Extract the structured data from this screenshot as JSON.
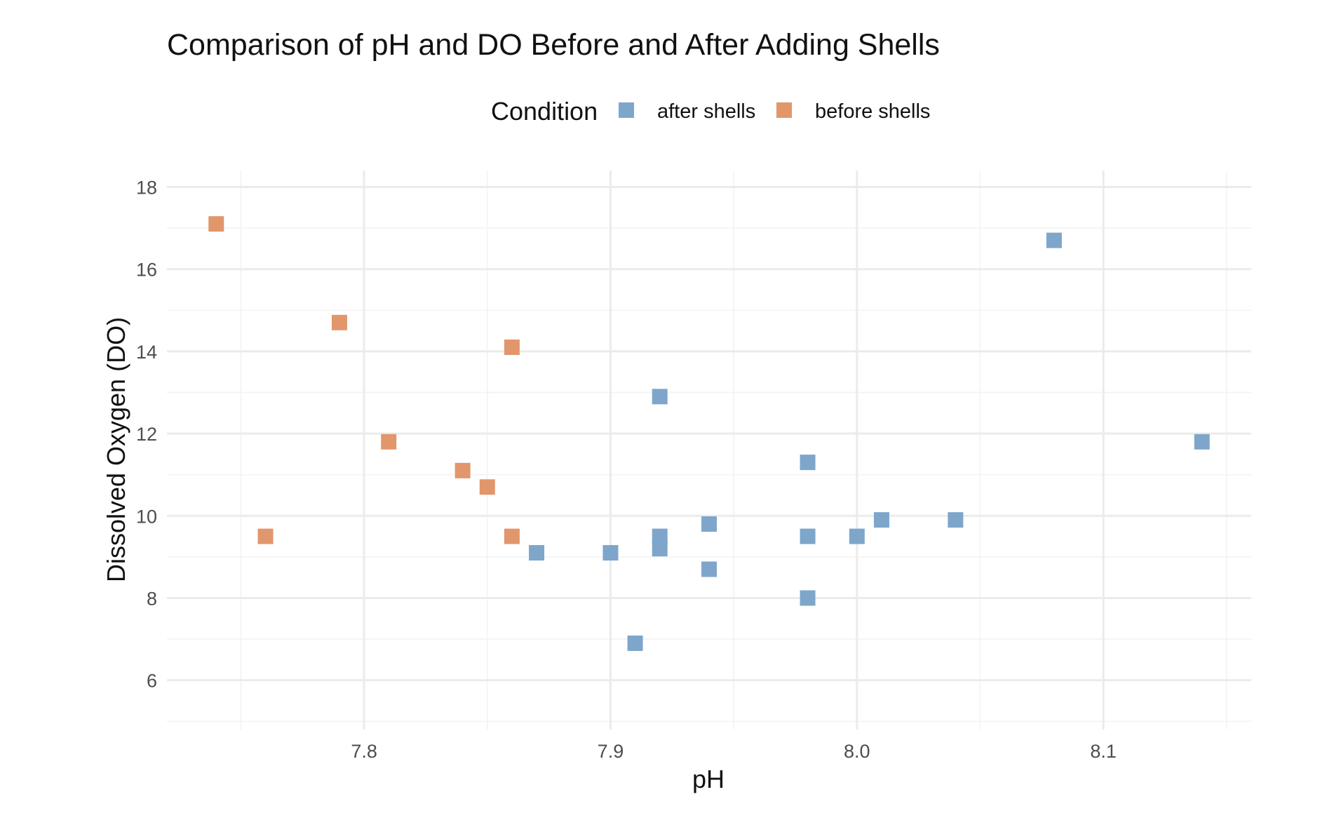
{
  "chart_data": {
    "type": "scatter",
    "title": "Comparison of pH and DO Before and After Adding Shells",
    "xlabel": "pH",
    "ylabel": "Dissolved Oxygen (DO)",
    "xlim": [
      7.72,
      8.16
    ],
    "ylim": [
      4.8,
      18.4
    ],
    "x_ticks": [
      "7.8",
      "7.9",
      "8.0",
      "8.1"
    ],
    "y_ticks": [
      "6",
      "8",
      "10",
      "12",
      "14",
      "16",
      "18"
    ],
    "grid": true,
    "legend": {
      "title": "Condition",
      "placement": "top",
      "entries": [
        {
          "label": "after shells",
          "color": "#7ea6cb"
        },
        {
          "label": "before shells",
          "color": "#e2966b"
        }
      ]
    },
    "series": [
      {
        "name": "after shells",
        "color": "#7ea6cb",
        "points": [
          [
            7.87,
            9.1
          ],
          [
            7.9,
            9.1
          ],
          [
            7.91,
            6.9
          ],
          [
            7.92,
            12.9
          ],
          [
            7.92,
            9.5
          ],
          [
            7.92,
            9.2
          ],
          [
            7.94,
            9.8
          ],
          [
            7.94,
            8.7
          ],
          [
            7.98,
            11.3
          ],
          [
            7.98,
            9.5
          ],
          [
            7.98,
            8.0
          ],
          [
            8.0,
            9.5
          ],
          [
            8.01,
            9.9
          ],
          [
            8.04,
            9.9
          ],
          [
            8.08,
            16.7
          ],
          [
            8.14,
            11.8
          ]
        ]
      },
      {
        "name": "before shells",
        "color": "#e2966b",
        "points": [
          [
            7.74,
            17.1
          ],
          [
            7.76,
            9.5
          ],
          [
            7.79,
            14.7
          ],
          [
            7.81,
            11.8
          ],
          [
            7.84,
            11.1
          ],
          [
            7.85,
            10.7
          ],
          [
            7.86,
            14.1
          ],
          [
            7.86,
            9.5
          ]
        ]
      }
    ]
  }
}
